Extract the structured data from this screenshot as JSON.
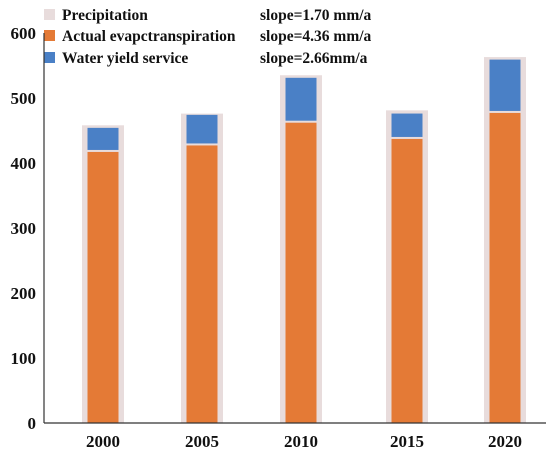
{
  "chart_data": {
    "type": "bar",
    "title": "",
    "xlabel": "",
    "ylabel": "",
    "categories": [
      "2000",
      "2005",
      "2010",
      "2015",
      "2020"
    ],
    "ylim": [
      0,
      600
    ],
    "yticks": [
      0,
      100,
      200,
      300,
      400,
      500,
      600
    ],
    "grid": false,
    "legend_position": "top-left",
    "series": [
      {
        "name": "Precipitation",
        "values": [
          458,
          476,
          535,
          481,
          563
        ],
        "color": "#e8dcdc",
        "slope": "slope=1.70 mm/a"
      },
      {
        "name": "Actual evapctranspiration",
        "values": [
          417,
          427,
          462,
          437,
          477
        ],
        "color": "#e47a36",
        "slope": "slope=4.36 mm/a"
      },
      {
        "name": "Water yield service",
        "values": [
          34,
          44,
          66,
          36,
          79
        ],
        "color": "#4a80c6",
        "slope": "slope=2.66mm/a"
      }
    ]
  }
}
